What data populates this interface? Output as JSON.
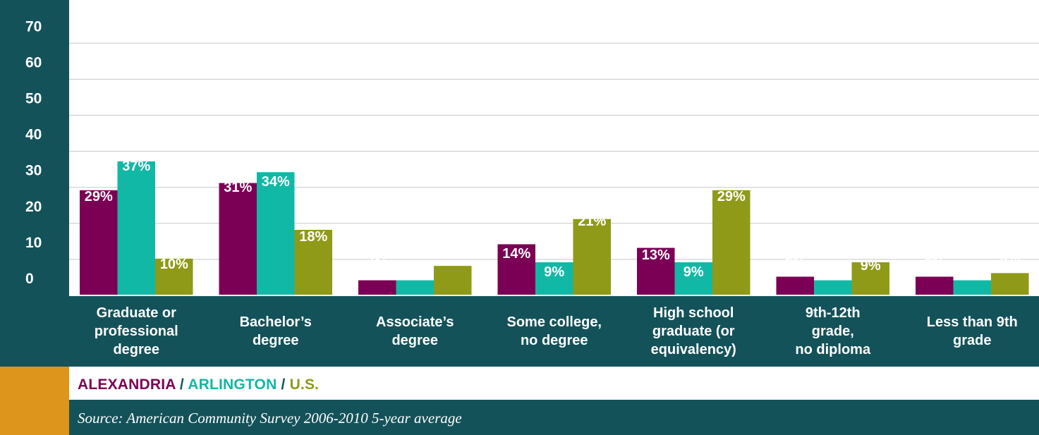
{
  "chart_data": {
    "type": "bar",
    "categories": [
      "Graduate or professional degree",
      "Bachelor’s degree",
      "Associate’s degree",
      "Some college, no degree",
      "High school graduate (or equivalency)",
      "9th-12th grade, no diploma",
      "Less than 9th grade"
    ],
    "category_lines": [
      [
        "Graduate or",
        "professional",
        "degree"
      ],
      [
        "Bachelor’s",
        "degree"
      ],
      [
        "Associate’s",
        "degree"
      ],
      [
        "Some college,",
        "no degree"
      ],
      [
        "High school",
        "graduate (or",
        "equivalency)"
      ],
      [
        "9th-12th",
        "grade,",
        "no diploma"
      ],
      [
        "Less than 9th",
        "grade"
      ]
    ],
    "series": [
      {
        "name": "ALEXANDRIA",
        "color": "#7b0055",
        "values": [
          29,
          31,
          4,
          14,
          13,
          5,
          5
        ],
        "labels": [
          "29%",
          "31%",
          "4%",
          "14%",
          "13%",
          "5%",
          "5%"
        ]
      },
      {
        "name": "ARLINGTON",
        "color": "#12b8a6",
        "values": [
          37,
          34,
          4,
          9,
          9,
          4,
          4
        ],
        "labels": [
          "37%",
          "34%",
          "4%",
          "9%",
          "9%",
          "4%",
          "4%"
        ]
      },
      {
        "name": "U.S.",
        "color": "#8f9a18",
        "values": [
          10,
          18,
          8,
          21,
          29,
          9,
          6
        ],
        "labels": [
          "10%",
          "18%",
          "8%",
          "21%",
          "29%",
          "9%",
          "6%"
        ]
      }
    ],
    "yticks": [
      "0",
      "10",
      "20",
      "30",
      "40",
      "50",
      "60",
      "70"
    ],
    "ylim": [
      0,
      70
    ],
    "grid": true,
    "legend_separator": " / ",
    "source": "Source: American Community Survey 2006-2010 5-year average"
  },
  "colors": {
    "panel": "#14525a",
    "accent": "#dd951b",
    "grid": "#c8c8c8"
  }
}
